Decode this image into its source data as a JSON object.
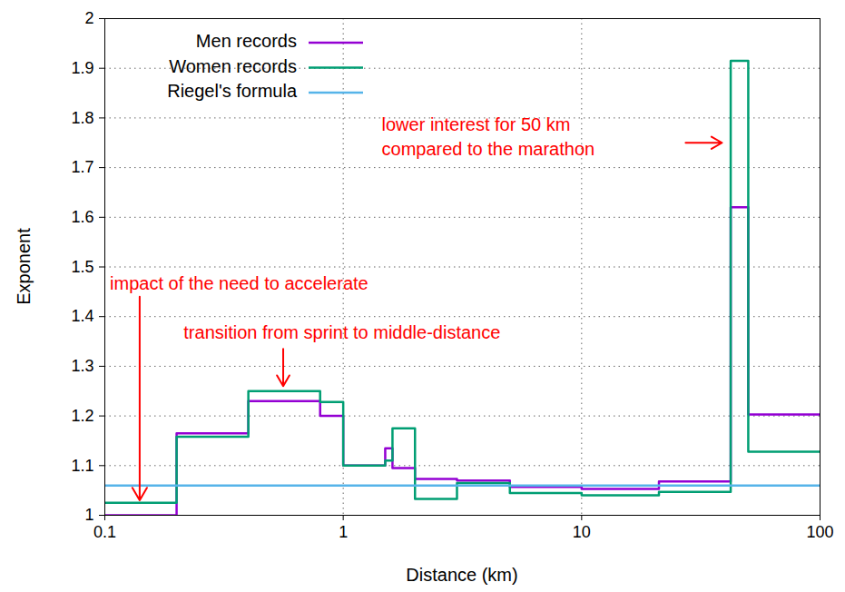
{
  "chart_data": {
    "type": "line",
    "line_style": "step",
    "log": "x",
    "grid": true,
    "legend": "top-left",
    "x_label": "Distance (km)",
    "y_label": "Exponent",
    "x": [
      0.1,
      0.2,
      0.4,
      0.8,
      1,
      1.5,
      1.609,
      2,
      3,
      5,
      10,
      21.1,
      42.195,
      50,
      100
    ],
    "series": [
      {
        "name": "Men records",
        "color": "#9400d3",
        "values": [
          1.0,
          1.165,
          1.23,
          1.2,
          1.1,
          1.135,
          1.095,
          1.073,
          1.07,
          1.057,
          1.053,
          1.068,
          1.62,
          1.203,
          1.203
        ]
      },
      {
        "name": "Women records",
        "color": "#009e73",
        "values": [
          1.025,
          1.158,
          1.25,
          1.228,
          1.1,
          1.11,
          1.175,
          1.033,
          1.065,
          1.045,
          1.04,
          1.047,
          1.915,
          1.128,
          1.128
        ]
      },
      {
        "name": "Riegel's formula",
        "color": "#56b4e9",
        "values": [
          1.06,
          1.06,
          1.06,
          1.06,
          1.06,
          1.06,
          1.06,
          1.06,
          1.06,
          1.06,
          1.06,
          1.06,
          1.06,
          1.06,
          1.06
        ]
      }
    ],
    "xlim": [
      0.1,
      100
    ],
    "xticks": [
      0.1,
      1,
      10,
      100
    ],
    "ylim": [
      1,
      2
    ],
    "yticks": [
      1,
      1.1,
      1.2,
      1.3,
      1.4,
      1.5,
      1.6,
      1.7,
      1.8,
      1.9,
      2
    ],
    "annotations": [
      {
        "text": "lower interest for 50 km\ncompared to the marathon"
      },
      {
        "text": "impact of the need to accelerate"
      },
      {
        "text": "transition from sprint to middle-distance"
      }
    ]
  }
}
